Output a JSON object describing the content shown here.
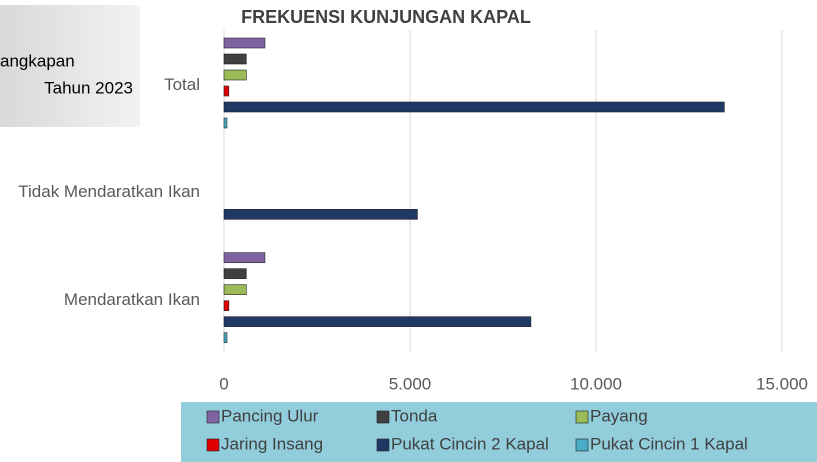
{
  "chart_data": {
    "type": "barh",
    "title": "FREKUENSI KUNJUNGAN KAPAL",
    "side_text": [
      "angkapan",
      "Tahun 2023"
    ],
    "categories": [
      "Total",
      "Tidak Mendaratkan Ikan",
      "Mendaratkan Ikan"
    ],
    "series": [
      {
        "name": "Pancing Ulur",
        "color": "#8064a2",
        "values": [
          1100,
          0,
          1100
        ]
      },
      {
        "name": "Tonda",
        "color": "#404040",
        "values": [
          600,
          0,
          600
        ]
      },
      {
        "name": "Payang",
        "color": "#9bbb59",
        "values": [
          600,
          0,
          600
        ]
      },
      {
        "name": "Jaring Insang",
        "color": "#e00000",
        "values": [
          130,
          0,
          130
        ]
      },
      {
        "name": "Pukat Cincin 2 Kapal",
        "color": "#1f3864",
        "values": [
          13450,
          5200,
          8250
        ]
      },
      {
        "name": "Pukat Cincin 1 Kapal",
        "color": "#4bacc6",
        "values": [
          80,
          0,
          80
        ]
      }
    ],
    "xlim": [
      0,
      15000
    ],
    "xticks": [
      0,
      {
        "value": 5000,
        "label": "5.000"
      },
      {
        "value": 10000,
        "label": "10.000"
      },
      {
        "value": 15000,
        "label": "15.000"
      }
    ],
    "grid": true
  }
}
